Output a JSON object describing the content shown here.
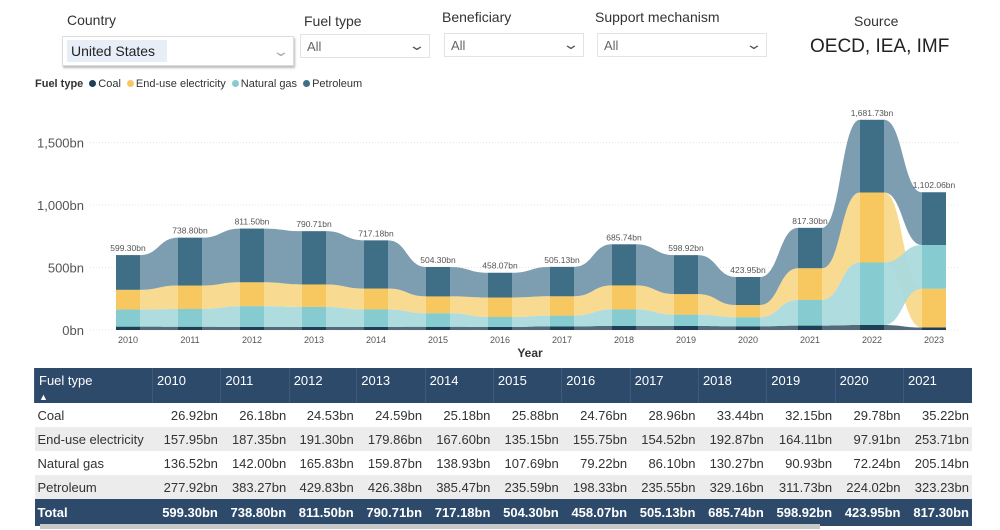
{
  "filters": {
    "country": {
      "label": "Country",
      "value": "United States"
    },
    "fuel_type": {
      "label": "Fuel type",
      "value": "All"
    },
    "beneficiary": {
      "label": "Beneficiary",
      "value": "All"
    },
    "support_mechanism": {
      "label": "Support mechanism",
      "value": "All"
    }
  },
  "source": {
    "label": "Source",
    "value": "OECD, IEA, IMF"
  },
  "chart_data": {
    "type": "ribbon",
    "legend_title": "Fuel type",
    "legend_position": "top-left",
    "xlabel": "Year",
    "ylabel": "",
    "ylim": [
      0,
      1700
    ],
    "yticks": [
      "0bn",
      "500bn",
      "1,000bn",
      "1,500bn"
    ],
    "ytick_values": [
      0,
      500,
      1000,
      1500
    ],
    "grid": true,
    "categories": [
      "2010",
      "2011",
      "2012",
      "2013",
      "2014",
      "2015",
      "2016",
      "2017",
      "2018",
      "2019",
      "2020",
      "2021",
      "2022",
      "2023"
    ],
    "totals_labels": [
      "599.30bn",
      "738.80bn",
      "811.50bn",
      "790.71bn",
      "717.18bn",
      "504.30bn",
      "458.07bn",
      "505.13bn",
      "685.74bn",
      "598.92bn",
      "423.95bn",
      "817.30bn",
      "1,681.73bn",
      "1,102.06bn"
    ],
    "series": [
      {
        "name": "Coal",
        "color": "#1f3e57",
        "values": [
          26.92,
          26.18,
          24.53,
          24.59,
          25.18,
          25.88,
          24.76,
          28.96,
          33.44,
          32.15,
          29.78,
          35.22,
          40,
          20
        ]
      },
      {
        "name": "End-use electricity",
        "color": "#f6c85f",
        "values": [
          157.95,
          187.35,
          191.3,
          179.86,
          167.6,
          135.15,
          155.75,
          154.52,
          192.87,
          164.11,
          97.91,
          253.71,
          560,
          310
        ]
      },
      {
        "name": "Natural gas",
        "color": "#86cbd0",
        "values": [
          136.52,
          142.0,
          165.83,
          159.87,
          138.93,
          107.69,
          79.22,
          86.1,
          130.27,
          90.93,
          72.24,
          205.14,
          500,
          350
        ]
      },
      {
        "name": "Petroleum",
        "color": "#3f6e87",
        "values": [
          277.92,
          383.27,
          429.83,
          426.38,
          385.47,
          235.59,
          198.33,
          235.55,
          329.16,
          311.73,
          224.02,
          323.23,
          581.73,
          422.06
        ]
      }
    ]
  },
  "table": {
    "header": "Fuel type",
    "sort_icon": "sort-ascending-icon",
    "years": [
      "2010",
      "2011",
      "2012",
      "2013",
      "2014",
      "2015",
      "2016",
      "2017",
      "2018",
      "2019",
      "2020",
      "2021"
    ],
    "rows": [
      {
        "name": "Coal",
        "values": [
          "26.92bn",
          "26.18bn",
          "24.53bn",
          "24.59bn",
          "25.18bn",
          "25.88bn",
          "24.76bn",
          "28.96bn",
          "33.44bn",
          "32.15bn",
          "29.78bn",
          "35.22bn"
        ]
      },
      {
        "name": "End-use electricity",
        "values": [
          "157.95bn",
          "187.35bn",
          "191.30bn",
          "179.86bn",
          "167.60bn",
          "135.15bn",
          "155.75bn",
          "154.52bn",
          "192.87bn",
          "164.11bn",
          "97.91bn",
          "253.71bn"
        ]
      },
      {
        "name": "Natural gas",
        "values": [
          "136.52bn",
          "142.00bn",
          "165.83bn",
          "159.87bn",
          "138.93bn",
          "107.69bn",
          "79.22bn",
          "86.10bn",
          "130.27bn",
          "90.93bn",
          "72.24bn",
          "205.14bn"
        ]
      },
      {
        "name": "Petroleum",
        "values": [
          "277.92bn",
          "383.27bn",
          "429.83bn",
          "426.38bn",
          "385.47bn",
          "235.59bn",
          "198.33bn",
          "235.55bn",
          "329.16bn",
          "311.73bn",
          "224.02bn",
          "323.23bn"
        ]
      }
    ],
    "total": {
      "name": "Total",
      "values": [
        "599.30bn",
        "738.80bn",
        "811.50bn",
        "790.71bn",
        "717.18bn",
        "504.30bn",
        "458.07bn",
        "505.13bn",
        "685.74bn",
        "598.92bn",
        "423.95bn",
        "817.30bn"
      ]
    }
  }
}
